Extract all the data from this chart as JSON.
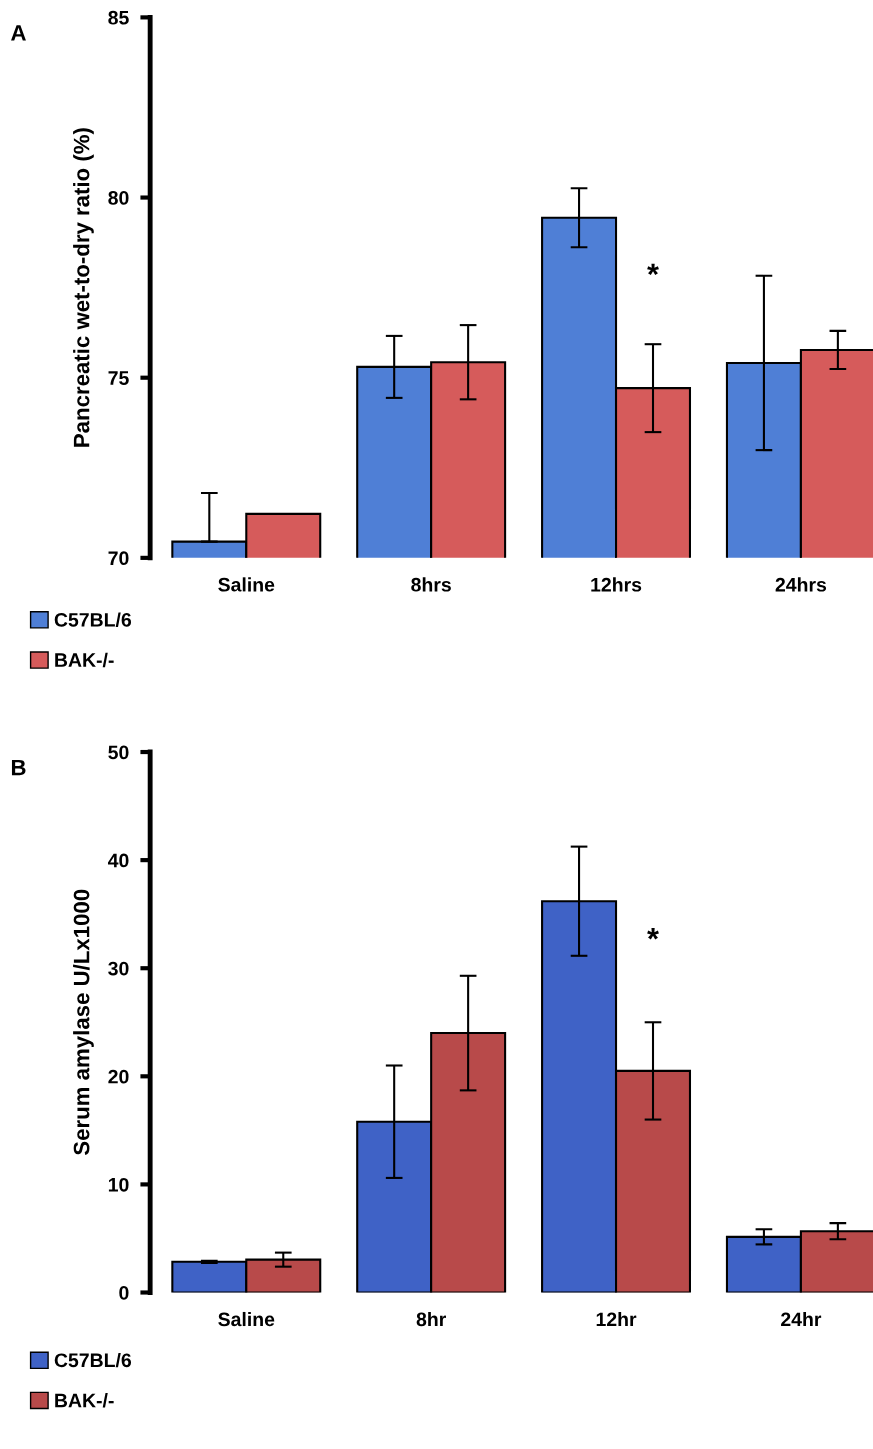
{
  "chart_data": [
    {
      "type": "bar",
      "ylabel": "Pancreatic wet-to-dry ratio (%)",
      "categories": [
        "Saline",
        "8hrs",
        "12hrs",
        "24hrs"
      ],
      "series": [
        {
          "name": "C57BL/6",
          "color": "#4f7fd6",
          "values": [
            70.45,
            75.3,
            79.44,
            75.41
          ],
          "errors": [
            [
              70.45,
              71.8
            ],
            0.86,
            0.82,
            2.42
          ]
        },
        {
          "name": "BAK-/-",
          "color": "#d65b5b",
          "values": [
            71.22,
            75.43,
            74.71,
            75.77
          ],
          "errors": [
            null,
            1.03,
            1.22,
            0.53
          ]
        }
      ],
      "ylim": [
        70,
        85
      ],
      "yticks": [
        70,
        75,
        80,
        85
      ],
      "grid": false,
      "legend": "bottom",
      "annotations": [
        "A",
        {
          "text": "*",
          "x": "12hrs",
          "y": 77.8
        }
      ]
    },
    {
      "type": "bar",
      "ylabel": "Serum amylase U/Lx1000",
      "categories": [
        "Saline",
        "8hr",
        "12hr",
        "24hr"
      ],
      "series": [
        {
          "name": "C57BL/6",
          "color": "#3f62c6",
          "values": [
            2.84,
            15.8,
            36.2,
            5.15
          ],
          "errors": [
            0.1,
            5.2,
            5.05,
            0.7
          ]
        },
        {
          "name": "BAK-/-",
          "color": "#b84a4a",
          "values": [
            3.04,
            24.0,
            20.5,
            5.67
          ],
          "errors": [
            0.65,
            5.3,
            4.5,
            0.75
          ]
        }
      ],
      "ylim": [
        0,
        50
      ],
      "yticks": [
        0,
        10,
        20,
        30,
        40,
        50
      ],
      "grid": false,
      "legend": "bottom",
      "annotations": [
        "B",
        {
          "text": "*",
          "x": "12hr",
          "y": 32.5
        }
      ]
    }
  ]
}
